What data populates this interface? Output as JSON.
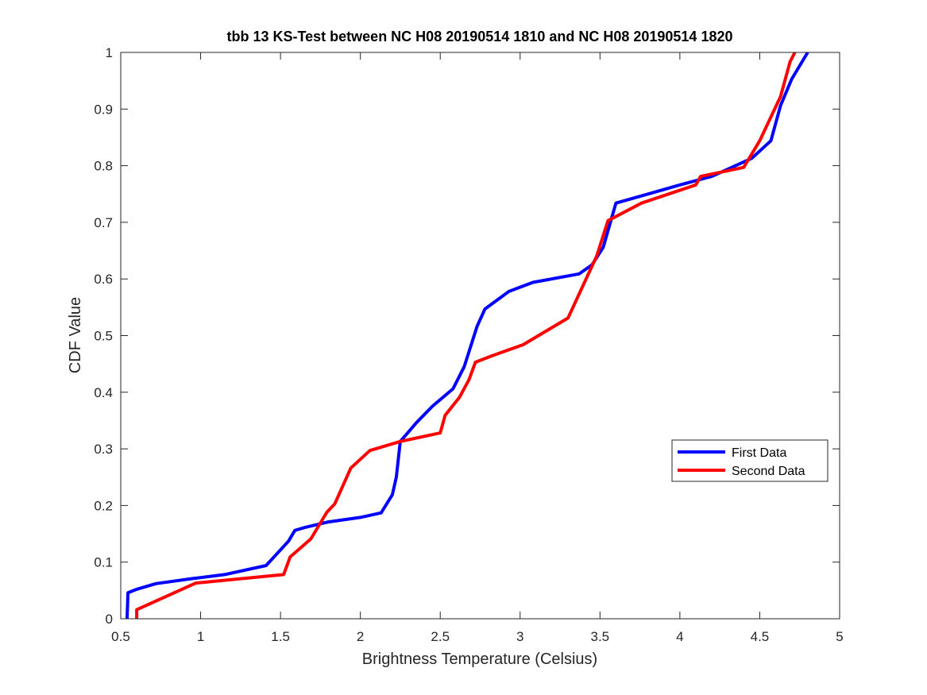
{
  "chart_data": {
    "type": "line",
    "title": "tbb 13 KS-Test between NC H08 20190514 1810 and NC H08 20190514 1820",
    "xlabel": "Brightness Temperature (Celsius)",
    "ylabel": "CDF Value",
    "xlim": [
      0.5,
      5
    ],
    "ylim": [
      0,
      1
    ],
    "xticks": [
      0.5,
      1,
      1.5,
      2,
      2.5,
      3,
      3.5,
      4,
      4.5,
      5
    ],
    "xtick_labels": [
      "0.5",
      "1",
      "1.5",
      "2",
      "2.5",
      "3",
      "3.5",
      "4",
      "4.5",
      "5"
    ],
    "yticks": [
      0,
      0.1,
      0.2,
      0.3,
      0.4,
      0.5,
      0.6,
      0.7,
      0.8,
      0.9,
      1
    ],
    "ytick_labels": [
      "0",
      "0.1",
      "0.2",
      "0.3",
      "0.4",
      "0.5",
      "0.6",
      "0.7",
      "0.8",
      "0.9",
      "1"
    ],
    "grid": false,
    "legend_position": "right",
    "series": [
      {
        "name": "First Data",
        "color": "#0000ff",
        "points": [
          [
            0.54,
            0.0
          ],
          [
            0.545,
            0.046
          ],
          [
            0.6,
            0.052
          ],
          [
            0.72,
            0.062
          ],
          [
            0.95,
            0.071
          ],
          [
            1.15,
            0.078
          ],
          [
            1.41,
            0.094
          ],
          [
            1.55,
            0.137
          ],
          [
            1.59,
            0.156
          ],
          [
            1.65,
            0.161
          ],
          [
            1.8,
            0.171
          ],
          [
            2.0,
            0.179
          ],
          [
            2.13,
            0.187
          ],
          [
            2.2,
            0.219
          ],
          [
            2.225,
            0.25
          ],
          [
            2.25,
            0.313
          ],
          [
            2.35,
            0.346
          ],
          [
            2.45,
            0.375
          ],
          [
            2.58,
            0.406
          ],
          [
            2.65,
            0.445
          ],
          [
            2.73,
            0.516
          ],
          [
            2.78,
            0.547
          ],
          [
            2.93,
            0.578
          ],
          [
            3.08,
            0.594
          ],
          [
            3.37,
            0.609
          ],
          [
            3.45,
            0.625
          ],
          [
            3.52,
            0.656
          ],
          [
            3.6,
            0.734
          ],
          [
            3.8,
            0.75
          ],
          [
            4.0,
            0.766
          ],
          [
            4.2,
            0.781
          ],
          [
            4.45,
            0.813
          ],
          [
            4.57,
            0.844
          ],
          [
            4.63,
            0.906
          ],
          [
            4.7,
            0.953
          ],
          [
            4.8,
            1.0
          ]
        ]
      },
      {
        "name": "Second Data",
        "color": "#ff0000",
        "points": [
          [
            0.6,
            0.0
          ],
          [
            0.6,
            0.016
          ],
          [
            0.97,
            0.063
          ],
          [
            1.52,
            0.078
          ],
          [
            1.56,
            0.109
          ],
          [
            1.69,
            0.141
          ],
          [
            1.79,
            0.188
          ],
          [
            1.84,
            0.203
          ],
          [
            1.94,
            0.266
          ],
          [
            2.06,
            0.297
          ],
          [
            2.25,
            0.313
          ],
          [
            2.5,
            0.328
          ],
          [
            2.53,
            0.359
          ],
          [
            2.62,
            0.391
          ],
          [
            2.68,
            0.422
          ],
          [
            2.72,
            0.453
          ],
          [
            2.82,
            0.464
          ],
          [
            3.02,
            0.484
          ],
          [
            3.3,
            0.531
          ],
          [
            3.48,
            0.641
          ],
          [
            3.55,
            0.703
          ],
          [
            3.76,
            0.734
          ],
          [
            4.1,
            0.766
          ],
          [
            4.13,
            0.781
          ],
          [
            4.4,
            0.797
          ],
          [
            4.5,
            0.844
          ],
          [
            4.63,
            0.922
          ],
          [
            4.69,
            0.984
          ],
          [
            4.72,
            1.0
          ]
        ]
      }
    ]
  }
}
